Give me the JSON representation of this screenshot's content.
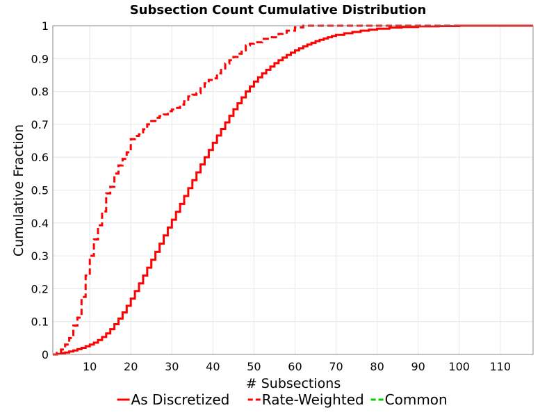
{
  "chart_data": {
    "type": "line",
    "title": "Subsection Count Cumulative Distribution",
    "xlabel": "# Subsections",
    "ylabel": "Cumulative Fraction",
    "xlim": [
      1,
      118
    ],
    "ylim": [
      0,
      1
    ],
    "xticks": [
      10,
      20,
      30,
      40,
      50,
      60,
      70,
      80,
      90,
      100,
      110
    ],
    "yticks": [
      0,
      0.1,
      0.2,
      0.3,
      0.4,
      0.5,
      0.6,
      0.7,
      0.8,
      0.9,
      1
    ],
    "grid": true,
    "legend_position": "bottom",
    "step": true,
    "series": [
      {
        "name": "As Discretized",
        "color": "#ff0000",
        "dash": "solid",
        "points": [
          [
            1,
            0
          ],
          [
            2,
            0.002
          ],
          [
            3,
            0.004
          ],
          [
            4,
            0.006
          ],
          [
            5,
            0.009
          ],
          [
            6,
            0.012
          ],
          [
            7,
            0.016
          ],
          [
            8,
            0.02
          ],
          [
            9,
            0.025
          ],
          [
            10,
            0.03
          ],
          [
            11,
            0.036
          ],
          [
            12,
            0.044
          ],
          [
            13,
            0.053
          ],
          [
            14,
            0.064
          ],
          [
            15,
            0.077
          ],
          [
            16,
            0.092
          ],
          [
            17,
            0.109
          ],
          [
            18,
            0.128
          ],
          [
            19,
            0.148
          ],
          [
            20,
            0.17
          ],
          [
            21,
            0.193
          ],
          [
            22,
            0.216
          ],
          [
            23,
            0.24
          ],
          [
            24,
            0.264
          ],
          [
            25,
            0.288
          ],
          [
            26,
            0.312
          ],
          [
            27,
            0.337
          ],
          [
            28,
            0.362
          ],
          [
            29,
            0.386
          ],
          [
            30,
            0.41
          ],
          [
            31,
            0.434
          ],
          [
            32,
            0.458
          ],
          [
            33,
            0.482
          ],
          [
            34,
            0.506
          ],
          [
            35,
            0.53
          ],
          [
            36,
            0.554
          ],
          [
            37,
            0.578
          ],
          [
            38,
            0.6
          ],
          [
            39,
            0.622
          ],
          [
            40,
            0.644
          ],
          [
            41,
            0.666
          ],
          [
            42,
            0.686
          ],
          [
            43,
            0.706
          ],
          [
            44,
            0.726
          ],
          [
            45,
            0.746
          ],
          [
            46,
            0.764
          ],
          [
            47,
            0.782
          ],
          [
            48,
            0.8
          ],
          [
            49,
            0.815
          ],
          [
            50,
            0.83
          ],
          [
            51,
            0.843
          ],
          [
            52,
            0.855
          ],
          [
            53,
            0.866
          ],
          [
            54,
            0.876
          ],
          [
            55,
            0.886
          ],
          [
            56,
            0.895
          ],
          [
            57,
            0.903
          ],
          [
            58,
            0.911
          ],
          [
            59,
            0.918
          ],
          [
            60,
            0.925
          ],
          [
            61,
            0.931
          ],
          [
            62,
            0.937
          ],
          [
            63,
            0.943
          ],
          [
            64,
            0.948
          ],
          [
            65,
            0.953
          ],
          [
            66,
            0.957
          ],
          [
            67,
            0.961
          ],
          [
            68,
            0.965
          ],
          [
            69,
            0.969
          ],
          [
            70,
            0.972
          ],
          [
            72,
            0.977
          ],
          [
            74,
            0.981
          ],
          [
            76,
            0.985
          ],
          [
            78,
            0.988
          ],
          [
            80,
            0.991
          ],
          [
            83,
            0.994
          ],
          [
            86,
            0.996
          ],
          [
            90,
            0.998
          ],
          [
            95,
            0.999
          ],
          [
            100,
            1.0
          ],
          [
            118,
            1.0
          ]
        ]
      },
      {
        "name": "Rate-Weighted",
        "color": "#ff0000",
        "dash": "dashed",
        "points": [
          [
            1,
            0
          ],
          [
            2,
            0.005
          ],
          [
            3,
            0.015
          ],
          [
            4,
            0.03
          ],
          [
            5,
            0.05
          ],
          [
            6,
            0.088
          ],
          [
            7,
            0.112
          ],
          [
            8,
            0.175
          ],
          [
            9,
            0.24
          ],
          [
            10,
            0.3
          ],
          [
            11,
            0.35
          ],
          [
            12,
            0.393
          ],
          [
            13,
            0.435
          ],
          [
            14,
            0.49
          ],
          [
            15,
            0.51
          ],
          [
            16,
            0.55
          ],
          [
            17,
            0.575
          ],
          [
            18,
            0.595
          ],
          [
            19,
            0.615
          ],
          [
            20,
            0.655
          ],
          [
            21,
            0.665
          ],
          [
            22,
            0.67
          ],
          [
            23,
            0.685
          ],
          [
            24,
            0.7
          ],
          [
            25,
            0.71
          ],
          [
            26,
            0.72
          ],
          [
            27,
            0.725
          ],
          [
            28,
            0.73
          ],
          [
            29,
            0.74
          ],
          [
            30,
            0.745
          ],
          [
            31,
            0.75
          ],
          [
            32,
            0.76
          ],
          [
            33,
            0.77
          ],
          [
            34,
            0.785
          ],
          [
            35,
            0.79
          ],
          [
            36,
            0.795
          ],
          [
            37,
            0.81
          ],
          [
            38,
            0.825
          ],
          [
            39,
            0.835
          ],
          [
            40,
            0.84
          ],
          [
            41,
            0.855
          ],
          [
            42,
            0.87
          ],
          [
            43,
            0.885
          ],
          [
            44,
            0.895
          ],
          [
            45,
            0.905
          ],
          [
            46,
            0.915
          ],
          [
            47,
            0.925
          ],
          [
            48,
            0.94
          ],
          [
            49,
            0.945
          ],
          [
            50,
            0.95
          ],
          [
            52,
            0.96
          ],
          [
            54,
            0.965
          ],
          [
            56,
            0.975
          ],
          [
            58,
            0.985
          ],
          [
            60,
            0.995
          ],
          [
            62,
            1.0
          ],
          [
            118,
            1.0
          ]
        ]
      },
      {
        "name": "Common",
        "color": "#00cc00",
        "dash": "dashed",
        "points": []
      }
    ]
  }
}
